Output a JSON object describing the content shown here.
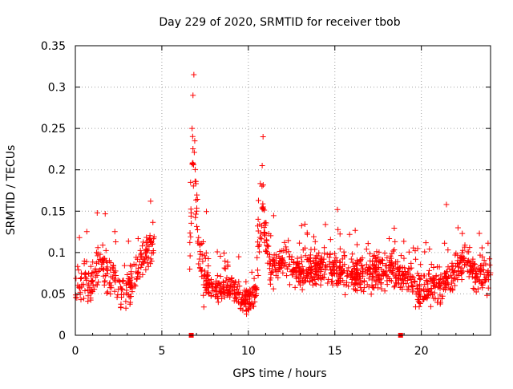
{
  "chart_data": {
    "type": "scatter",
    "title": "Day 229 of 2020, SRMTID for receiver tbob",
    "xlabel": "GPS time / hours",
    "ylabel": "SRMTID / TECUs",
    "xlim": [
      0,
      24
    ],
    "ylim": [
      0,
      0.35
    ],
    "x_ticks": [
      0,
      5,
      10,
      15,
      20
    ],
    "x_tick_labels": [
      "0",
      "5",
      "10",
      "15",
      "20"
    ],
    "y_ticks": [
      0,
      0.05,
      0.1,
      0.15,
      0.2,
      0.25,
      0.3,
      0.35
    ],
    "y_tick_labels": [
      "0",
      "0.05",
      "0.1",
      "0.15",
      "0.2",
      "0.25",
      "0.3",
      "0.35"
    ],
    "grid": true,
    "marker": "plus",
    "marker_color": "#ff0000",
    "square_marker_points": [
      [
        6.7,
        0.0
      ],
      [
        18.8,
        0.0
      ]
    ],
    "segments": [
      {
        "range": [
          0.0,
          4.6
        ],
        "envelope": [
          [
            0.0,
            0.06
          ],
          [
            0.5,
            0.065
          ],
          [
            1.0,
            0.07
          ],
          [
            1.5,
            0.085
          ],
          [
            2.0,
            0.07
          ],
          [
            2.5,
            0.06
          ],
          [
            3.0,
            0.055
          ],
          [
            3.5,
            0.075
          ],
          [
            4.0,
            0.1
          ],
          [
            4.6,
            0.11
          ]
        ],
        "spread": 0.035,
        "count": 260
      },
      {
        "range": [
          6.6,
          7.7
        ],
        "envelope": [
          [
            6.6,
            0.1
          ],
          [
            6.8,
            0.22
          ],
          [
            7.0,
            0.15
          ],
          [
            7.3,
            0.08
          ],
          [
            7.7,
            0.06
          ]
        ],
        "spread": 0.06,
        "count": 70
      },
      {
        "range": [
          7.5,
          10.5
        ],
        "envelope": [
          [
            7.5,
            0.06
          ],
          [
            8.0,
            0.055
          ],
          [
            8.5,
            0.055
          ],
          [
            9.0,
            0.06
          ],
          [
            9.5,
            0.045
          ],
          [
            10.0,
            0.04
          ],
          [
            10.5,
            0.05
          ]
        ],
        "spread": 0.025,
        "count": 210
      },
      {
        "range": [
          10.5,
          11.2
        ],
        "envelope": [
          [
            10.5,
            0.09
          ],
          [
            10.8,
            0.16
          ],
          [
            11.0,
            0.12
          ],
          [
            11.2,
            0.09
          ]
        ],
        "spread": 0.045,
        "count": 50
      },
      {
        "range": [
          11.2,
          24.0
        ],
        "envelope": [
          [
            11.2,
            0.08
          ],
          [
            12.0,
            0.09
          ],
          [
            13.0,
            0.075
          ],
          [
            14.0,
            0.08
          ],
          [
            15.0,
            0.08
          ],
          [
            16.0,
            0.075
          ],
          [
            17.0,
            0.075
          ],
          [
            18.0,
            0.08
          ],
          [
            19.0,
            0.07
          ],
          [
            20.0,
            0.055
          ],
          [
            21.0,
            0.06
          ],
          [
            22.0,
            0.075
          ],
          [
            22.5,
            0.095
          ],
          [
            23.0,
            0.075
          ],
          [
            24.0,
            0.07
          ]
        ],
        "spread": 0.03,
        "count": 900
      }
    ],
    "peaks": [
      [
        6.85,
        0.315
      ],
      [
        6.8,
        0.29
      ],
      [
        6.75,
        0.25
      ],
      [
        6.9,
        0.235
      ],
      [
        10.85,
        0.24
      ],
      [
        10.8,
        0.205
      ],
      [
        21.45,
        0.158
      ],
      [
        15.15,
        0.152
      ],
      [
        4.35,
        0.162
      ]
    ]
  }
}
